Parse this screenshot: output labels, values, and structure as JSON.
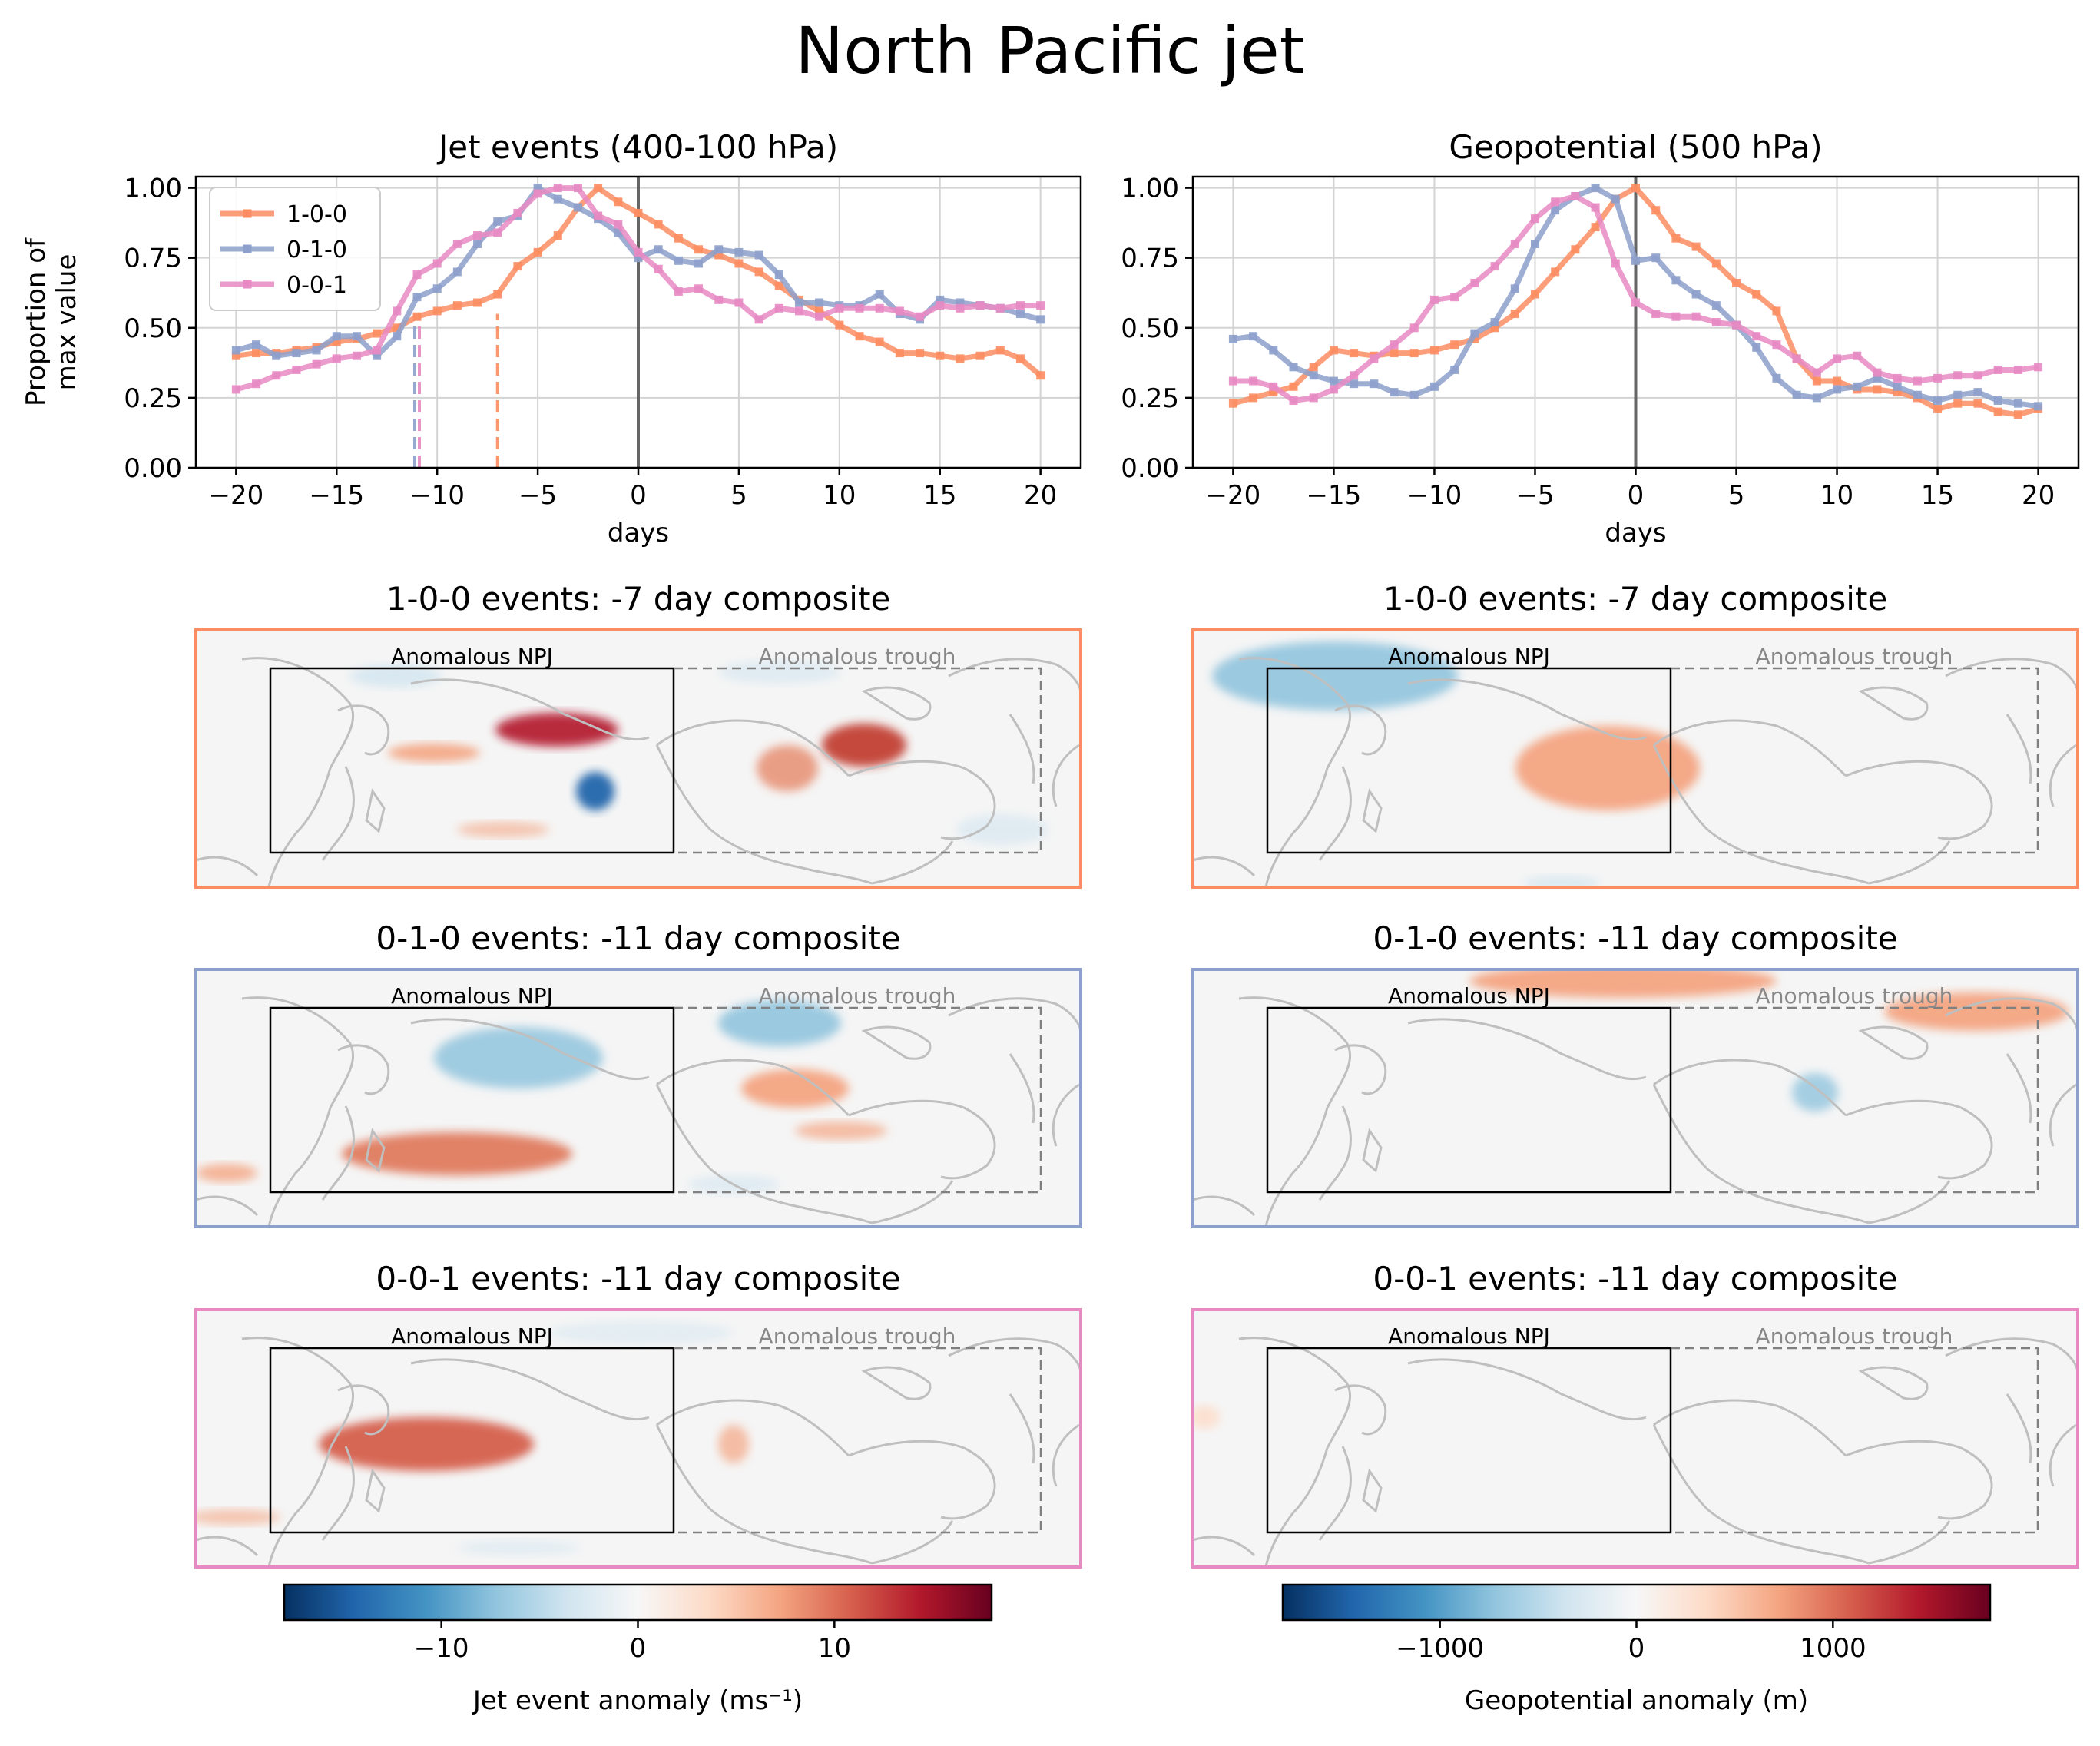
{
  "figure": {
    "suptitle": "North Pacific jet"
  },
  "colors": {
    "c100": "#fc8d62",
    "c010": "#8da0cb",
    "c001": "#e78ac3",
    "zero_line": "#666666",
    "grid": "#d3d3d3",
    "box_solid": "#000000",
    "box_dashed": "#808080",
    "coast": "#bfbfbf",
    "map_bg": "#f5f5f5"
  },
  "chart_data": [
    {
      "type": "line",
      "title": "Jet events (400-100 hPa)",
      "xlabel": "days",
      "ylabel": "Proportion of\nmax value",
      "xlim": [
        -22,
        22
      ],
      "ylim": [
        0,
        1.04
      ],
      "xticks": [
        -20,
        -15,
        -10,
        -5,
        0,
        5,
        10,
        15,
        20
      ],
      "yticks": [
        0.0,
        0.25,
        0.5,
        0.75,
        1.0
      ],
      "grid": true,
      "legend": {
        "placement": "top-left"
      },
      "x": [
        -20,
        -19,
        -18,
        -17,
        -16,
        -15,
        -14,
        -13,
        -12,
        -11,
        -10,
        -9,
        -8,
        -7,
        -6,
        -5,
        -4,
        -3,
        -2,
        -1,
        0,
        1,
        2,
        3,
        4,
        5,
        6,
        7,
        8,
        9,
        10,
        11,
        12,
        13,
        14,
        15,
        16,
        17,
        18,
        19,
        20
      ],
      "series": [
        {
          "name": "1-0-0",
          "color": "#fc8d62",
          "onset_day": -7,
          "values": [
            0.4,
            0.41,
            0.41,
            0.42,
            0.43,
            0.45,
            0.46,
            0.48,
            0.5,
            0.54,
            0.56,
            0.58,
            0.59,
            0.62,
            0.72,
            0.77,
            0.83,
            0.93,
            1.0,
            0.95,
            0.91,
            0.87,
            0.82,
            0.78,
            0.76,
            0.73,
            0.7,
            0.65,
            0.6,
            0.56,
            0.51,
            0.47,
            0.45,
            0.41,
            0.41,
            0.4,
            0.39,
            0.4,
            0.42,
            0.39,
            0.33
          ]
        },
        {
          "name": "0-1-0",
          "color": "#8da0cb",
          "onset_day": -11,
          "values": [
            0.42,
            0.44,
            0.4,
            0.41,
            0.42,
            0.47,
            0.47,
            0.4,
            0.47,
            0.61,
            0.64,
            0.7,
            0.8,
            0.88,
            0.9,
            1.0,
            0.96,
            0.93,
            0.89,
            0.84,
            0.75,
            0.78,
            0.74,
            0.73,
            0.78,
            0.77,
            0.76,
            0.69,
            0.59,
            0.59,
            0.58,
            0.58,
            0.62,
            0.55,
            0.53,
            0.6,
            0.59,
            0.58,
            0.57,
            0.55,
            0.53
          ]
        },
        {
          "name": "0-0-1",
          "color": "#e78ac3",
          "onset_day": -11,
          "values": [
            0.28,
            0.3,
            0.33,
            0.35,
            0.37,
            0.39,
            0.4,
            0.42,
            0.56,
            0.69,
            0.73,
            0.8,
            0.83,
            0.84,
            0.91,
            0.98,
            1.0,
            1.0,
            0.9,
            0.87,
            0.77,
            0.71,
            0.63,
            0.64,
            0.6,
            0.59,
            0.53,
            0.57,
            0.56,
            0.54,
            0.57,
            0.57,
            0.57,
            0.56,
            0.54,
            0.58,
            0.57,
            0.58,
            0.57,
            0.58,
            0.58
          ]
        }
      ]
    },
    {
      "type": "line",
      "title": "Geopotential (500 hPa)",
      "xlabel": "days",
      "xlim": [
        -22,
        22
      ],
      "ylim": [
        0,
        1.04
      ],
      "xticks": [
        -20,
        -15,
        -10,
        -5,
        0,
        5,
        10,
        15,
        20
      ],
      "yticks": [
        0.0,
        0.25,
        0.5,
        0.75,
        1.0
      ],
      "grid": true,
      "x": [
        -20,
        -19,
        -18,
        -17,
        -16,
        -15,
        -14,
        -13,
        -12,
        -11,
        -10,
        -9,
        -8,
        -7,
        -6,
        -5,
        -4,
        -3,
        -2,
        -1,
        0,
        1,
        2,
        3,
        4,
        5,
        6,
        7,
        8,
        9,
        10,
        11,
        12,
        13,
        14,
        15,
        16,
        17,
        18,
        19,
        20
      ],
      "series": [
        {
          "name": "1-0-0",
          "color": "#fc8d62",
          "values": [
            0.23,
            0.25,
            0.27,
            0.29,
            0.36,
            0.42,
            0.41,
            0.4,
            0.41,
            0.41,
            0.42,
            0.44,
            0.46,
            0.5,
            0.55,
            0.62,
            0.7,
            0.78,
            0.86,
            0.96,
            1.0,
            0.92,
            0.82,
            0.79,
            0.73,
            0.66,
            0.62,
            0.56,
            0.39,
            0.31,
            0.31,
            0.28,
            0.28,
            0.27,
            0.25,
            0.21,
            0.23,
            0.23,
            0.2,
            0.19,
            0.21
          ]
        },
        {
          "name": "0-1-0",
          "color": "#8da0cb",
          "values": [
            0.46,
            0.47,
            0.42,
            0.36,
            0.33,
            0.31,
            0.3,
            0.3,
            0.27,
            0.26,
            0.29,
            0.35,
            0.48,
            0.52,
            0.64,
            0.8,
            0.92,
            0.97,
            1.0,
            0.96,
            0.74,
            0.75,
            0.67,
            0.62,
            0.58,
            0.51,
            0.43,
            0.32,
            0.26,
            0.25,
            0.28,
            0.29,
            0.32,
            0.29,
            0.26,
            0.24,
            0.26,
            0.27,
            0.24,
            0.23,
            0.22
          ]
        },
        {
          "name": "0-0-1",
          "color": "#e78ac3",
          "values": [
            0.31,
            0.31,
            0.29,
            0.24,
            0.25,
            0.28,
            0.33,
            0.39,
            0.44,
            0.5,
            0.6,
            0.61,
            0.66,
            0.72,
            0.8,
            0.89,
            0.95,
            0.97,
            0.93,
            0.73,
            0.59,
            0.55,
            0.54,
            0.54,
            0.52,
            0.51,
            0.47,
            0.44,
            0.39,
            0.34,
            0.39,
            0.4,
            0.34,
            0.32,
            0.31,
            0.32,
            0.33,
            0.33,
            0.35,
            0.35,
            0.36
          ]
        }
      ]
    },
    {
      "type": "heatmap",
      "layout": "3x2 map composites",
      "map_titles": [
        "1-0-0 events: -7 day composite",
        "1-0-0 events: -7 day composite",
        "0-1-0 events: -11 day composite",
        "0-1-0 events: -11 day composite",
        "0-0-1 events: -11 day composite",
        "0-0-1 events: -11 day composite"
      ],
      "box_labels": {
        "npj": "Anomalous NPJ",
        "trough": "Anomalous trough"
      },
      "colorbars": [
        {
          "label": "Jet event anomaly (ms⁻¹)",
          "range": [
            -18,
            18
          ],
          "ticks": [
            -10,
            0,
            10
          ],
          "tick_labels": [
            "−10",
            "0",
            "10"
          ]
        },
        {
          "label": "Geopotential anomaly (m)",
          "range": [
            -1800,
            1800
          ],
          "ticks": [
            -1000,
            0,
            1000
          ],
          "tick_labels": [
            "−1000",
            "0",
            "1000"
          ]
        }
      ]
    }
  ]
}
